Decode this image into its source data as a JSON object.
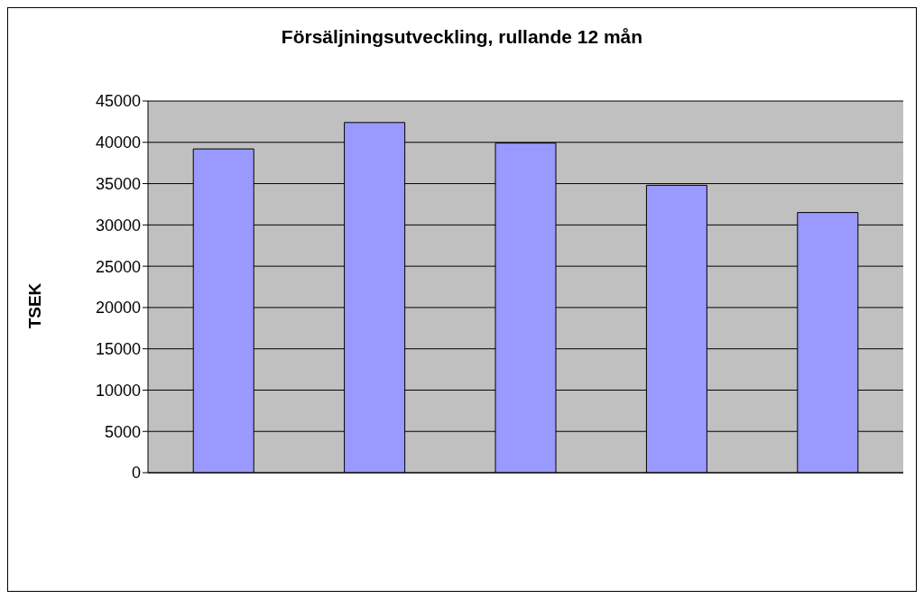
{
  "chart_data": {
    "type": "bar",
    "title": "Försäljningsutveckling, rullande 12 mån",
    "ylabel": "TSEK",
    "categories": [
      null,
      null,
      null,
      null,
      null
    ],
    "values": [
      39200,
      42400,
      39900,
      34800,
      31500
    ],
    "color": "#9999ff",
    "ylim": [
      0,
      45000
    ],
    "yticks": [
      0,
      5000,
      10000,
      15000,
      20000,
      25000,
      30000,
      35000,
      40000,
      45000
    ],
    "grid": "y",
    "tick_labels": "y"
  }
}
